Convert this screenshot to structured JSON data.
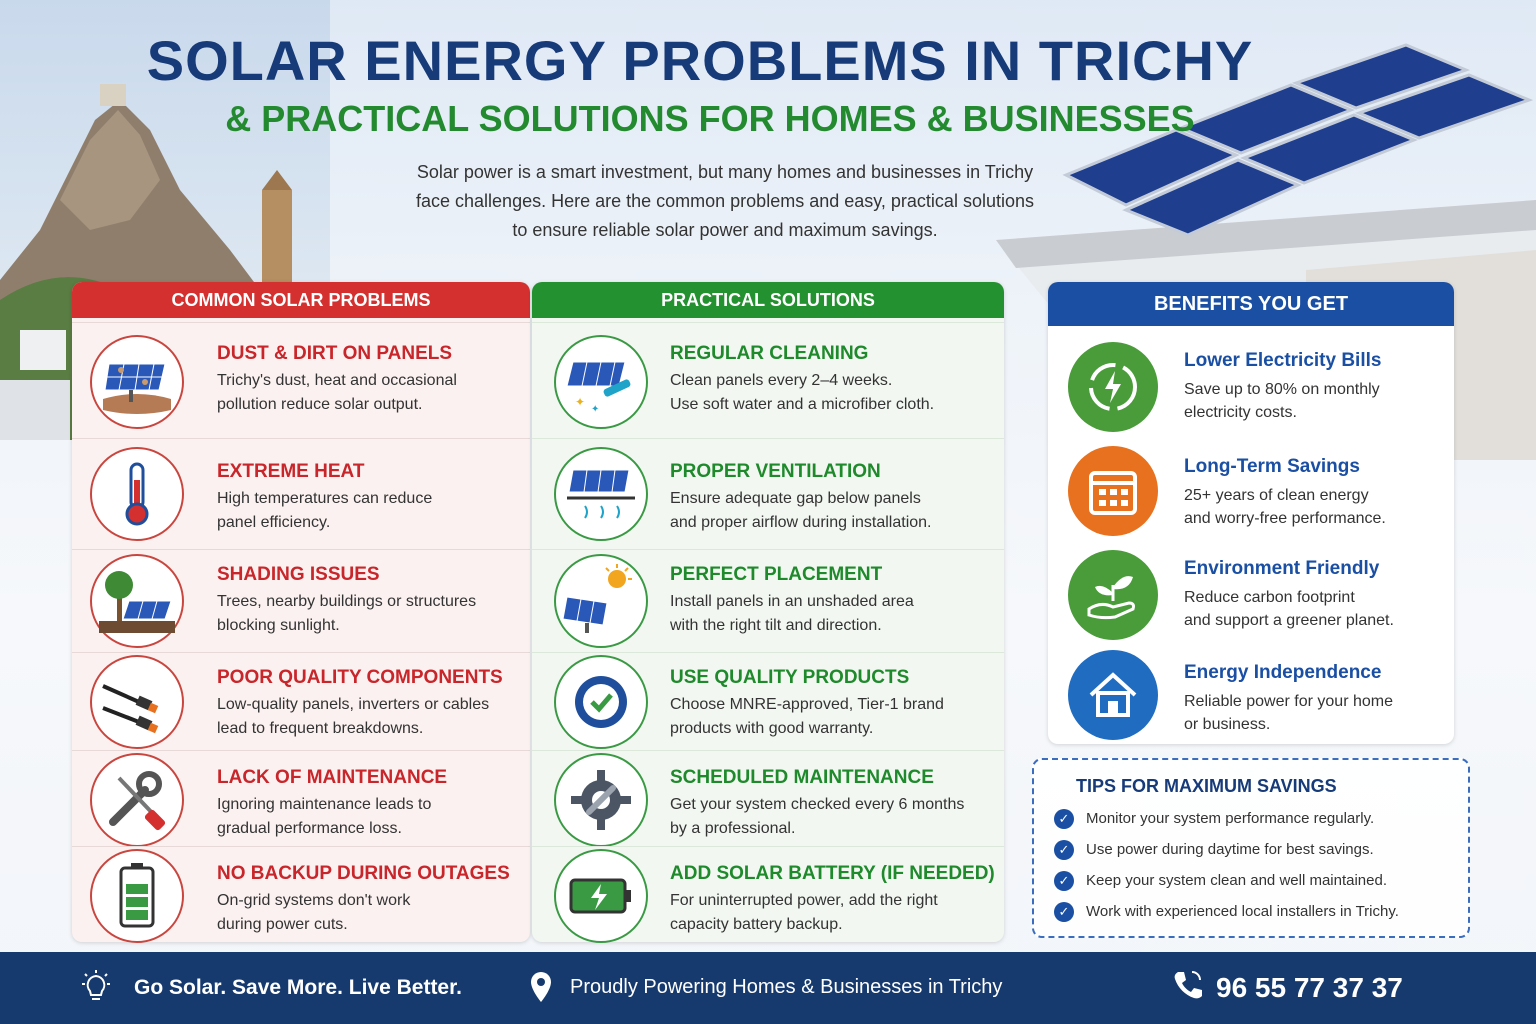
{
  "header": {
    "title": "SOLAR ENERGY PROBLEMS IN TRICHY",
    "subtitle": "& PRACTICAL SOLUTIONS FOR HOMES & BUSINESSES",
    "intro_lines": [
      "Solar power is a smart investment, but many homes and businesses in Trichy",
      "face challenges. Here are the common problems and easy, practical solutions",
      "to ensure reliable solar power and maximum savings."
    ]
  },
  "problems": {
    "heading": "COMMON SOLAR PROBLEMS",
    "items": [
      {
        "title": "DUST & DIRT ON PANELS",
        "lines": [
          "Trichy's dust, heat and occasional",
          "pollution reduce solar output."
        ],
        "icon": "dusty-panel-icon"
      },
      {
        "title": "EXTREME HEAT",
        "lines": [
          "High temperatures can reduce",
          "panel efficiency."
        ],
        "icon": "thermometer-icon"
      },
      {
        "title": "SHADING ISSUES",
        "lines": [
          "Trees, nearby buildings or structures",
          "blocking sunlight."
        ],
        "icon": "tree-shade-icon"
      },
      {
        "title": "POOR QUALITY COMPONENTS",
        "lines": [
          "Low-quality panels, inverters or cables",
          "lead to frequent breakdowns."
        ],
        "icon": "cable-icon"
      },
      {
        "title": "LACK OF MAINTENANCE",
        "lines": [
          "Ignoring maintenance leads to",
          "gradual performance loss."
        ],
        "icon": "tools-icon"
      },
      {
        "title": "NO BACKUP DURING OUTAGES",
        "lines": [
          "On-grid systems don't work",
          "during power cuts."
        ],
        "icon": "battery-icon"
      }
    ]
  },
  "solutions": {
    "heading": "PRACTICAL SOLUTIONS",
    "items": [
      {
        "title": "REGULAR CLEANING",
        "lines": [
          "Clean panels every 2–4 weeks.",
          "Use soft water and a microfiber cloth."
        ],
        "icon": "cleaning-icon"
      },
      {
        "title": "PROPER VENTILATION",
        "lines": [
          "Ensure adequate gap below panels",
          "and proper airflow during installation."
        ],
        "icon": "ventilation-icon"
      },
      {
        "title": "PERFECT PLACEMENT",
        "lines": [
          "Install panels in an unshaded area",
          "with the right tilt and direction."
        ],
        "icon": "sun-panel-icon"
      },
      {
        "title": "USE QUALITY PRODUCTS",
        "lines": [
          "Choose MNRE-approved, Tier-1 brand",
          "products with good warranty."
        ],
        "icon": "quality-badge-icon"
      },
      {
        "title": "SCHEDULED MAINTENANCE",
        "lines": [
          "Get your system checked every 6 months",
          "by a professional."
        ],
        "icon": "gear-wrench-icon"
      },
      {
        "title": "ADD SOLAR BATTERY (IF NEEDED)",
        "lines": [
          "For uninterrupted power, add the right",
          "capacity battery backup."
        ],
        "icon": "charging-battery-icon"
      }
    ]
  },
  "benefits": {
    "heading": "BENEFITS YOU GET",
    "items": [
      {
        "title": "Lower Electricity Bills",
        "lines": [
          "Save up to 80% on monthly",
          "electricity costs."
        ],
        "color": "#4a9c3a",
        "icon": "energy-cycle-icon"
      },
      {
        "title": "Long-Term Savings",
        "lines": [
          "25+ years of clean energy",
          "and worry-free performance."
        ],
        "color": "#e8711f",
        "icon": "calendar-icon"
      },
      {
        "title": "Environment Friendly",
        "lines": [
          "Reduce carbon footprint",
          "and support a greener planet."
        ],
        "color": "#4a9c3a",
        "icon": "plant-hand-icon"
      },
      {
        "title": "Energy Independence",
        "lines": [
          "Reliable power for your home",
          "or business."
        ],
        "color": "#1f6cc0",
        "icon": "house-icon"
      }
    ]
  },
  "tips": {
    "heading": "TIPS FOR MAXIMUM SAVINGS",
    "items": [
      "Monitor your system performance regularly.",
      "Use power during daytime for best savings.",
      "Keep your system clean and well maintained.",
      "Work with experienced local installers in Trichy."
    ]
  },
  "footer": {
    "slogan": "Go Solar. Save More. Live Better.",
    "location_text": "Proudly Powering Homes & Businesses in Trichy",
    "phone": "96 55 77 37 37"
  },
  "colors": {
    "title_blue": "#173a78",
    "green": "#238a2f",
    "problem_red": "#d3302f",
    "benefit_blue": "#1a4fa3",
    "footer_bg": "#173a6e"
  }
}
